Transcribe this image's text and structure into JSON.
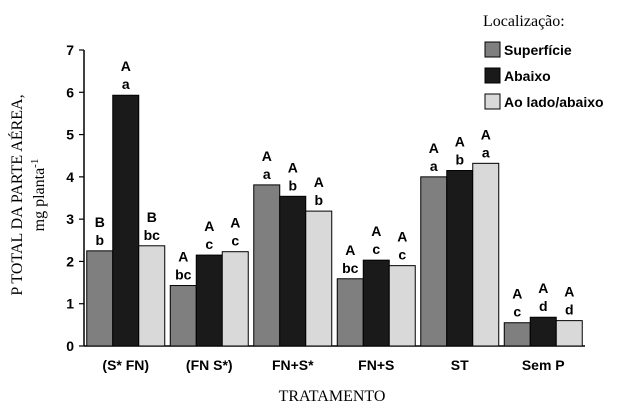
{
  "chart_data": {
    "type": "bar",
    "xlabel": "TRATAMENTO",
    "ylabel_line1": "P TOTAL DA PARTE AÉREA,",
    "ylabel_line2_main": "mg planta",
    "ylabel_line2_sup": "-1",
    "ylim": [
      0,
      7
    ],
    "yticks": [
      "0",
      "1",
      "2",
      "3",
      "4",
      "5",
      "6",
      "7"
    ],
    "grid": false,
    "legend_title": "Localização:",
    "legend_position": "top-right",
    "categories": [
      "(S* FN)",
      "(FN S*)",
      "FN+S*",
      "FN+S",
      "ST",
      "Sem P"
    ],
    "series": [
      {
        "name": "Superfície",
        "color": "#7f7f7f",
        "values": [
          2.25,
          1.43,
          3.81,
          1.59,
          4.0,
          0.55
        ],
        "upper": [
          "B",
          "A",
          "A",
          "A",
          "A",
          "A"
        ],
        "lower": [
          "b",
          "bc",
          "a",
          "bc",
          "a",
          "c"
        ]
      },
      {
        "name": "Abaixo",
        "color": "#1a1a1a",
        "values": [
          5.93,
          2.15,
          3.54,
          2.03,
          4.15,
          0.68
        ],
        "upper": [
          "A",
          "A",
          "A",
          "A",
          "A",
          "A"
        ],
        "lower": [
          "a",
          "c",
          "b",
          "c",
          "b",
          "d"
        ]
      },
      {
        "name": "Ao lado/abaixo",
        "color": "#d9d9d9",
        "values": [
          2.37,
          2.23,
          3.19,
          1.9,
          4.32,
          0.6
        ],
        "upper": [
          "B",
          "A",
          "A",
          "A",
          "A",
          "A"
        ],
        "lower": [
          "bc",
          "c",
          "b",
          "c",
          "a",
          "d"
        ]
      }
    ]
  }
}
